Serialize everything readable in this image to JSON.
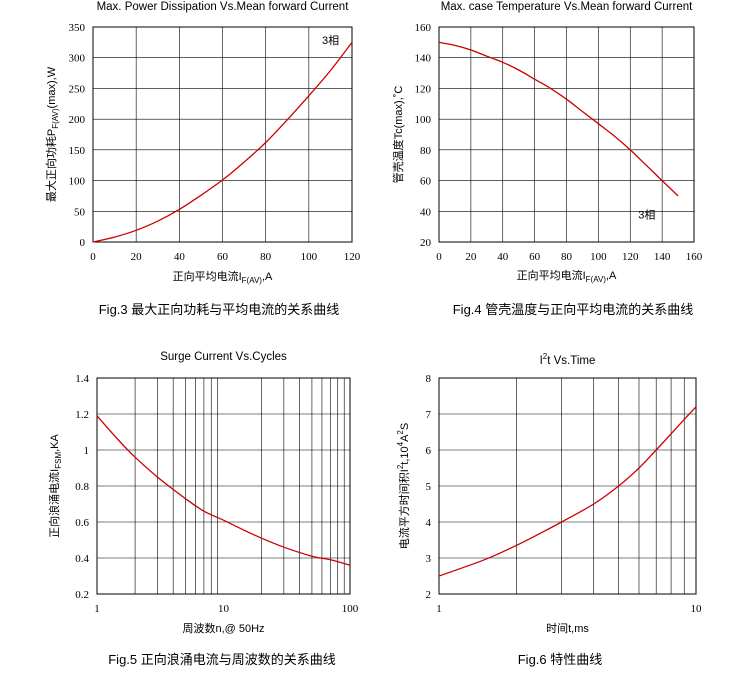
{
  "chart_data": [
    {
      "type": "line",
      "title": "Max. Power Dissipation Vs.Mean forward Current",
      "ylabel_main": "最大正向功耗P",
      "ylabel_sub": "F(AV)",
      "ylabel_tail": "(max),W",
      "xlabel_main": "正向平均电流I",
      "xlabel_sub": "F(AV)",
      "xlabel_tail": ",A",
      "xscale": "linear",
      "xlim": [
        0,
        120
      ],
      "ylim": [
        0,
        350
      ],
      "xticks": [
        0,
        20,
        40,
        60,
        80,
        100,
        120
      ],
      "yticks": [
        0,
        50,
        100,
        150,
        200,
        250,
        300,
        350
      ],
      "grid": true,
      "annotation": "3相",
      "caption": "Fig.3  最大正向功耗与平均电流的关系曲线",
      "series": [
        {
          "name": "3相",
          "x": [
            0,
            10,
            20,
            30,
            40,
            50,
            60,
            70,
            80,
            90,
            100,
            110,
            120
          ],
          "y": [
            0,
            8,
            19,
            34,
            53,
            76,
            101,
            130,
            162,
            199,
            238,
            279,
            325
          ]
        }
      ]
    },
    {
      "type": "line",
      "title": "Max. case Temperature Vs.Mean forward Current",
      "ylabel_main": "管壳温度Tc(max),˚C",
      "xlabel_main": "正向平均电流I",
      "xlabel_sub": "F(AV)",
      "xlabel_tail": ",A",
      "xscale": "linear",
      "xlim": [
        0,
        160
      ],
      "ylim": [
        20,
        160
      ],
      "xticks": [
        0,
        20,
        40,
        60,
        80,
        100,
        120,
        140,
        160
      ],
      "yticks": [
        20,
        40,
        60,
        80,
        100,
        120,
        140,
        160
      ],
      "grid": true,
      "annotation": "3相",
      "caption": "Fig.4  管壳温度与正向平均电流的关系曲线",
      "series": [
        {
          "name": "3相",
          "x": [
            0,
            10,
            20,
            30,
            40,
            50,
            60,
            70,
            80,
            90,
            100,
            110,
            120,
            130,
            140,
            150
          ],
          "y": [
            150,
            148,
            145,
            141,
            137,
            132,
            126,
            120,
            113,
            105,
            97,
            89,
            80,
            70,
            60,
            50
          ]
        }
      ]
    },
    {
      "type": "line",
      "title": "Surge Current Vs.Cycles",
      "ylabel_main": "正向浪涌电流I",
      "ylabel_sub": "FSM",
      "ylabel_tail": ",KA",
      "xlabel_main": "周波数n,@ 50Hz",
      "xscale": "log",
      "xlim": [
        1,
        100
      ],
      "ylim": [
        0.2,
        1.4
      ],
      "xticks": [
        "1",
        "10",
        "100"
      ],
      "yticks": [
        "0.2",
        "0.4",
        "0.6",
        "0.8",
        "1",
        "1.2",
        "1.4"
      ],
      "grid": true,
      "caption": "Fig.5  正向浪涌电流与周波数的关系曲线",
      "series": [
        {
          "name": "Surge",
          "x": [
            1,
            1.5,
            2,
            3,
            5,
            7,
            10,
            15,
            20,
            30,
            50,
            70,
            100
          ],
          "y": [
            1.19,
            1.05,
            0.96,
            0.85,
            0.73,
            0.66,
            0.61,
            0.55,
            0.51,
            0.46,
            0.41,
            0.39,
            0.36
          ]
        }
      ]
    },
    {
      "type": "line",
      "title": "I²t  Vs.Time",
      "ylabel_main": "电流平方时间积I",
      "ylabel_sup": "2",
      "ylabel_mid": "t,10",
      "ylabel_sup2": "4",
      "ylabel_tail": "A",
      "ylabel_sup3": "2",
      "ylabel_end": "S",
      "xlabel_main": "时间t,ms",
      "xscale": "log",
      "xlim": [
        1,
        10
      ],
      "ylim": [
        2,
        8
      ],
      "xticks": [
        "1",
        "10"
      ],
      "yticks": [
        "2",
        "3",
        "4",
        "5",
        "6",
        "7",
        "8"
      ],
      "grid": true,
      "caption": "Fig.6  特性曲线",
      "series": [
        {
          "name": "I2t",
          "x": [
            1,
            1.5,
            2,
            2.5,
            3,
            4,
            5,
            6,
            7,
            8,
            9,
            10
          ],
          "y": [
            2.5,
            2.95,
            3.35,
            3.7,
            4.0,
            4.5,
            5.0,
            5.5,
            6.0,
            6.45,
            6.85,
            7.2
          ]
        }
      ]
    }
  ]
}
